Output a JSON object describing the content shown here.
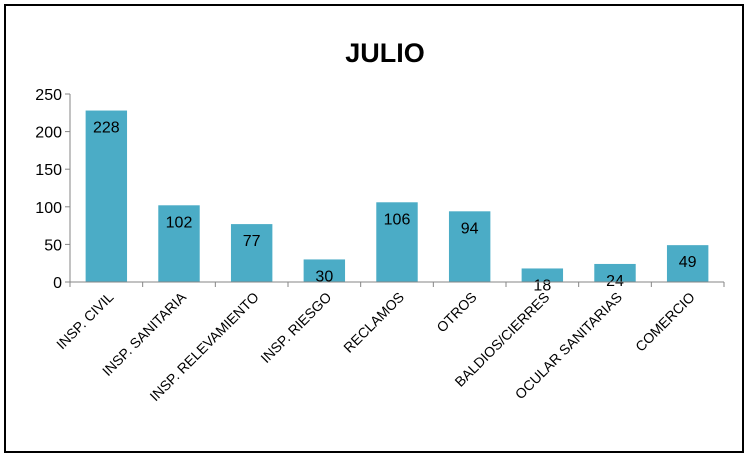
{
  "chart_data": {
    "type": "bar",
    "title": "JULIO",
    "categories": [
      "INSP. CIVIL",
      "INSP. SANITARIA",
      "INSP. RELEVAMIENTO",
      "INSP. RIESGO",
      "RECLAMOS",
      "OTROS",
      "BALDIOS/CIERRES",
      "OCULAR SANITARIAS",
      "COMERCIO"
    ],
    "values": [
      228,
      102,
      77,
      30,
      106,
      94,
      18,
      24,
      49
    ],
    "ylim": [
      0,
      250
    ],
    "yticks": [
      "0",
      "50",
      "100",
      "150",
      "200",
      "250"
    ],
    "xlabel": "",
    "ylabel": "",
    "grid": false,
    "legend": "none",
    "bar_color": "#4bacc6"
  }
}
